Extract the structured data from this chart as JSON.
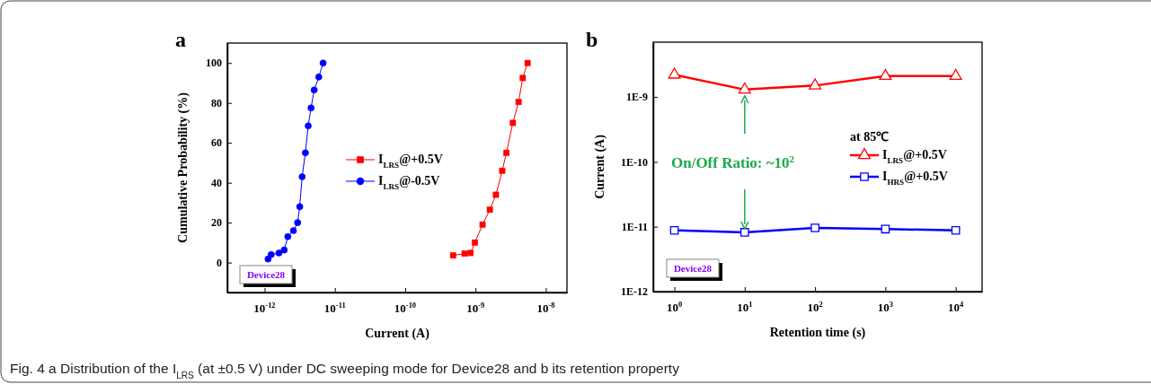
{
  "chart_data": [
    {
      "type": "line",
      "title": "a",
      "xlabel": "Current (A)",
      "ylabel": "Cumulative Probability (%)",
      "log": "x",
      "xlim": [
        2.95e-13,
        2e-08
      ],
      "ylim": [
        -15,
        110
      ],
      "xticks": [
        {
          "value": 1e-12,
          "label": "10$^{-12}$"
        },
        {
          "value": 1e-11,
          "label": "10$^{-11}$"
        },
        {
          "value": 1e-10,
          "label": "10$^{-10}$"
        },
        {
          "value": 1e-09,
          "label": "10$^{-9}$"
        },
        {
          "value": 1e-08,
          "label": "10$^{-8}$"
        }
      ],
      "yticks": [
        0,
        20,
        40,
        60,
        80,
        100
      ],
      "legend": "center",
      "grid": false,
      "series": [
        {
          "name": "I$_{LRS}$@+0.5V",
          "color": "#ff0000",
          "marker": "square",
          "x": [
            4.8e-10,
            7e-10,
            8.5e-10,
            9.8e-10,
            1.26e-09,
            1.6e-09,
            1.95e-09,
            2.4e-09,
            2.75e-09,
            3.4e-09,
            4.1e-09,
            4.7e-09,
            5.5e-09
          ],
          "values": [
            3.6,
            4.5,
            4.8,
            10,
            19,
            26.5,
            34,
            46,
            55,
            70,
            80.5,
            92.5,
            100
          ]
        },
        {
          "name": "I$_{LRS}$@-0.5V",
          "color": "#0000ff",
          "marker": "circle",
          "x": [
            1.12e-12,
            1.24e-12,
            1.6e-12,
            1.9e-12,
            2.14e-12,
            2.57e-12,
            2.95e-12,
            3.16e-12,
            3.42e-12,
            3.8e-12,
            4.17e-12,
            4.58e-12,
            5.07e-12,
            5.9e-12,
            6.8e-12
          ],
          "values": [
            1.8,
            4,
            4.8,
            6.3,
            13,
            16,
            20,
            28,
            43,
            55,
            68.5,
            77.5,
            86.5,
            93,
            100
          ]
        }
      ],
      "annotations": [
        "Device28",
        "Fig. 4 a Distribution of the I$_{LRS}$ (at ±0.5 V) under DC sweeping mode for Device28 and b its retention property"
      ]
    },
    {
      "type": "line",
      "title": "b",
      "xlabel": "Retention time (s)",
      "ylabel": "Current (A)",
      "log": "xy",
      "xlim": [
        0.5,
        23700
      ],
      "ylim": [
        1e-12,
        7e-09
      ],
      "xticks": [
        {
          "value": 1,
          "label": "10$^{0}$"
        },
        {
          "value": 10,
          "label": "10$^{1}$"
        },
        {
          "value": 100,
          "label": "10$^{2}$"
        },
        {
          "value": 1000,
          "label": "10$^{3}$"
        },
        {
          "value": 10000,
          "label": "10$^{4}$"
        }
      ],
      "yticks": [
        {
          "value": 1e-12,
          "label": "1E-12"
        },
        {
          "value": 1e-11,
          "label": "1E-11"
        },
        {
          "value": 1e-10,
          "label": "1E-10"
        },
        {
          "value": 1e-09,
          "label": "1E-9"
        }
      ],
      "legend": "right",
      "legend_title": "at 85℃",
      "grid": false,
      "series": [
        {
          "name": "I$_{LRS}$@+0.5V",
          "color": "#ff0000",
          "marker": "triangle",
          "x": [
            1,
            10,
            100,
            1000,
            10000
          ],
          "values": [
            2.2e-09,
            1.3e-09,
            1.5e-09,
            2.1e-09,
            2.1e-09
          ]
        },
        {
          "name": "I$_{HRS}$@+0.5V",
          "color": "#0000ff",
          "marker": "square",
          "x": [
            1,
            10,
            100,
            1000,
            10000
          ],
          "values": [
            8.8e-12,
            8.2e-12,
            9.6e-12,
            9.2e-12,
            8.8e-12
          ]
        }
      ],
      "annotations": [
        "On/Off Ratio: ~10$^{2}$",
        "Device28"
      ]
    }
  ]
}
